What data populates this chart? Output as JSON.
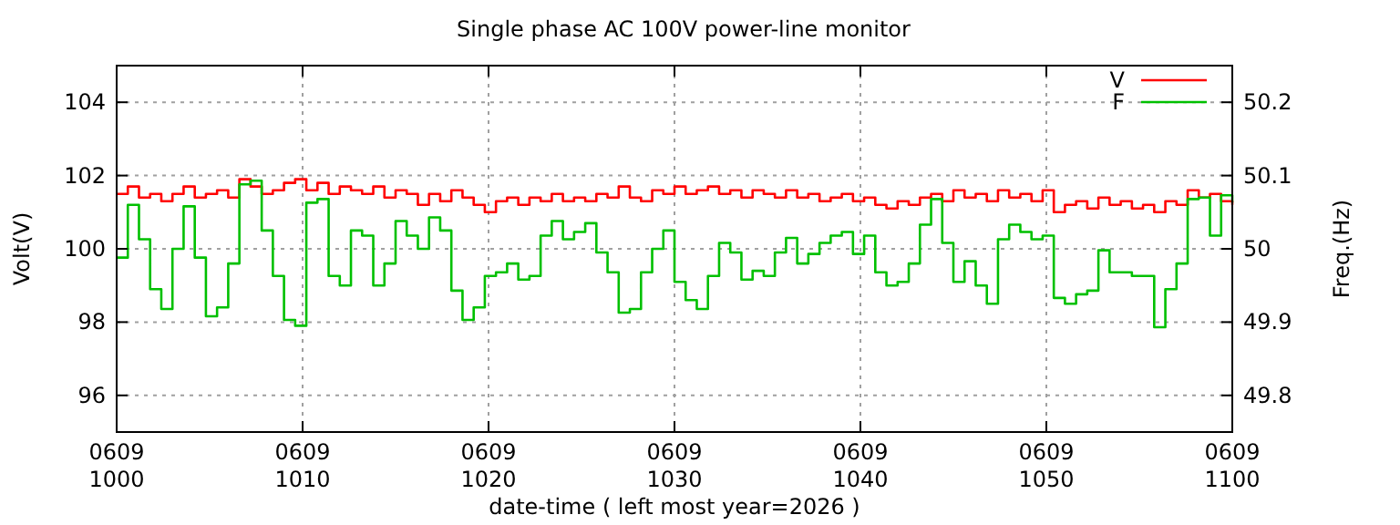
{
  "chart_data": {
    "type": "step",
    "title": "Single phase AC 100V power-line monitor",
    "xlabel": "date-time ( left most year=2026 )",
    "ylabel": "Volt(V)",
    "y2label": "Freq.(Hz)",
    "x": [
      "2026-06-09T10:00:00",
      "2026-06-09T10:00:36",
      "2026-06-09T10:01:12",
      "2026-06-09T10:01:48",
      "2026-06-09T10:02:24",
      "2026-06-09T10:03:00",
      "2026-06-09T10:03:36",
      "2026-06-09T10:04:12",
      "2026-06-09T10:04:48",
      "2026-06-09T10:05:24",
      "2026-06-09T10:06:00",
      "2026-06-09T10:06:36",
      "2026-06-09T10:07:12",
      "2026-06-09T10:07:48",
      "2026-06-09T10:08:24",
      "2026-06-09T10:09:00",
      "2026-06-09T10:09:36",
      "2026-06-09T10:10:12",
      "2026-06-09T10:10:48",
      "2026-06-09T10:11:24",
      "2026-06-09T10:12:00",
      "2026-06-09T10:12:36",
      "2026-06-09T10:13:12",
      "2026-06-09T10:13:48",
      "2026-06-09T10:14:24",
      "2026-06-09T10:15:00",
      "2026-06-09T10:15:36",
      "2026-06-09T10:16:12",
      "2026-06-09T10:16:48",
      "2026-06-09T10:17:24",
      "2026-06-09T10:18:00",
      "2026-06-09T10:18:36",
      "2026-06-09T10:19:12",
      "2026-06-09T10:19:48",
      "2026-06-09T10:20:24",
      "2026-06-09T10:21:00",
      "2026-06-09T10:21:36",
      "2026-06-09T10:22:12",
      "2026-06-09T10:22:48",
      "2026-06-09T10:23:24",
      "2026-06-09T10:24:00",
      "2026-06-09T10:24:36",
      "2026-06-09T10:25:12",
      "2026-06-09T10:25:48",
      "2026-06-09T10:26:24",
      "2026-06-09T10:27:00",
      "2026-06-09T10:27:36",
      "2026-06-09T10:28:12",
      "2026-06-09T10:28:48",
      "2026-06-09T10:29:24",
      "2026-06-09T10:30:00",
      "2026-06-09T10:30:36",
      "2026-06-09T10:31:12",
      "2026-06-09T10:31:48",
      "2026-06-09T10:32:24",
      "2026-06-09T10:33:00",
      "2026-06-09T10:33:36",
      "2026-06-09T10:34:12",
      "2026-06-09T10:34:48",
      "2026-06-09T10:35:24",
      "2026-06-09T10:36:00",
      "2026-06-09T10:36:36",
      "2026-06-09T10:37:12",
      "2026-06-09T10:37:48",
      "2026-06-09T10:38:24",
      "2026-06-09T10:39:00",
      "2026-06-09T10:39:36",
      "2026-06-09T10:40:12",
      "2026-06-09T10:40:48",
      "2026-06-09T10:41:24",
      "2026-06-09T10:42:00",
      "2026-06-09T10:42:36",
      "2026-06-09T10:43:12",
      "2026-06-09T10:43:48",
      "2026-06-09T10:44:24",
      "2026-06-09T10:45:00",
      "2026-06-09T10:45:36",
      "2026-06-09T10:46:12",
      "2026-06-09T10:46:48",
      "2026-06-09T10:47:24",
      "2026-06-09T10:48:00",
      "2026-06-09T10:48:36",
      "2026-06-09T10:49:12",
      "2026-06-09T10:49:48",
      "2026-06-09T10:50:24",
      "2026-06-09T10:51:00",
      "2026-06-09T10:51:36",
      "2026-06-09T10:52:12",
      "2026-06-09T10:52:48",
      "2026-06-09T10:53:24",
      "2026-06-09T10:54:00",
      "2026-06-09T10:54:36",
      "2026-06-09T10:55:12",
      "2026-06-09T10:55:48",
      "2026-06-09T10:56:24",
      "2026-06-09T10:57:00",
      "2026-06-09T10:57:36",
      "2026-06-09T10:58:12",
      "2026-06-09T10:58:48",
      "2026-06-09T10:59:24",
      "2026-06-09T11:00:00"
    ],
    "series": [
      {
        "name": "V",
        "color": "#ff0000",
        "values": [
          101.5,
          101.7,
          101.4,
          101.5,
          101.3,
          101.5,
          101.7,
          101.4,
          101.5,
          101.6,
          101.4,
          101.9,
          101.7,
          101.5,
          101.6,
          101.8,
          101.9,
          101.6,
          101.8,
          101.5,
          101.7,
          101.6,
          101.5,
          101.7,
          101.4,
          101.6,
          101.5,
          101.2,
          101.5,
          101.3,
          101.6,
          101.4,
          101.2,
          101.0,
          101.3,
          101.4,
          101.2,
          101.4,
          101.3,
          101.5,
          101.3,
          101.4,
          101.3,
          101.5,
          101.4,
          101.7,
          101.4,
          101.3,
          101.6,
          101.5,
          101.7,
          101.5,
          101.6,
          101.7,
          101.5,
          101.6,
          101.4,
          101.6,
          101.5,
          101.4,
          101.6,
          101.4,
          101.5,
          101.3,
          101.4,
          101.5,
          101.3,
          101.4,
          101.2,
          101.1,
          101.3,
          101.2,
          101.4,
          101.5,
          101.3,
          101.6,
          101.4,
          101.5,
          101.3,
          101.6,
          101.4,
          101.5,
          101.3,
          101.6,
          101.0,
          101.2,
          101.3,
          101.1,
          101.4,
          101.2,
          101.3,
          101.1,
          101.2,
          101.0,
          101.3,
          101.2,
          101.6,
          101.4,
          101.5,
          101.3,
          101.2
        ]
      },
      {
        "name": "F",
        "color": "#00c000",
        "axis": "y2",
        "values": [
          49.988,
          50.06,
          50.013,
          49.945,
          49.918,
          50.0,
          50.058,
          49.988,
          49.908,
          49.92,
          49.98,
          50.088,
          50.093,
          50.025,
          49.963,
          49.903,
          49.895,
          50.063,
          50.068,
          49.963,
          49.95,
          50.025,
          50.018,
          49.95,
          49.98,
          50.038,
          50.018,
          50.0,
          50.043,
          50.025,
          49.943,
          49.903,
          49.92,
          49.963,
          49.968,
          49.98,
          49.958,
          49.963,
          50.018,
          50.038,
          50.013,
          50.023,
          50.035,
          49.995,
          49.968,
          49.913,
          49.918,
          49.968,
          50.0,
          50.025,
          49.955,
          49.93,
          49.918,
          49.963,
          50.008,
          49.995,
          49.958,
          49.97,
          49.963,
          49.995,
          50.015,
          49.98,
          49.993,
          50.008,
          50.018,
          50.023,
          49.993,
          50.018,
          49.968,
          49.95,
          49.955,
          49.98,
          50.033,
          50.068,
          50.008,
          49.955,
          49.983,
          49.95,
          49.925,
          50.013,
          50.033,
          50.023,
          50.013,
          50.018,
          49.933,
          49.925,
          49.938,
          49.943,
          49.998,
          49.968,
          49.968,
          49.963,
          49.963,
          49.893,
          49.945,
          49.98,
          50.068,
          50.07,
          50.018,
          50.073,
          50.063
        ]
      }
    ],
    "xlim": [
      "2026-06-09T10:00",
      "2026-06-09T11:00"
    ],
    "xticks": [
      {
        "value": "2026-06-09T10:00",
        "label": "0609\n1000"
      },
      {
        "value": "2026-06-09T10:10",
        "label": "0609\n1010"
      },
      {
        "value": "2026-06-09T10:20",
        "label": "0609\n1020"
      },
      {
        "value": "2026-06-09T10:30",
        "label": "0609\n1030"
      },
      {
        "value": "2026-06-09T10:40",
        "label": "0609\n1040"
      },
      {
        "value": "2026-06-09T10:50",
        "label": "0609\n1050"
      },
      {
        "value": "2026-06-09T11:00",
        "label": "0609\n1100"
      }
    ],
    "ylim": [
      95,
      105
    ],
    "yticks": [
      96,
      98,
      100,
      102,
      104
    ],
    "y2lim": [
      49.75,
      50.25
    ],
    "y2ticks": [
      49.8,
      49.9,
      50,
      50.1,
      50.2
    ],
    "grid": true,
    "legend": "top right"
  }
}
